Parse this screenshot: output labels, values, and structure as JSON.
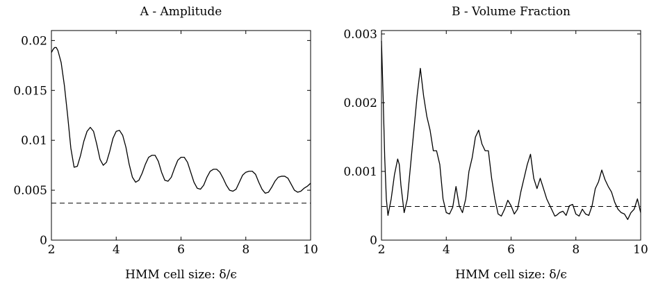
{
  "chart_data": [
    {
      "type": "line",
      "title": "A - Amplitude",
      "xlabel": "HMM cell size: δ/ϵ",
      "ylabel": "",
      "xlim": [
        2,
        10
      ],
      "ylim": [
        0,
        0.021
      ],
      "xticks": [
        2,
        4,
        6,
        8,
        10
      ],
      "xtick_labels": [
        "2",
        "4",
        "6",
        "8",
        "10"
      ],
      "yticks": [
        0,
        0.005,
        0.01,
        0.015,
        0.02
      ],
      "ytick_labels": [
        "0",
        "0.005",
        "0.01",
        "0.015",
        "0.02"
      ],
      "grid": false,
      "series": [
        {
          "style": "solid",
          "x": [
            2.0,
            2.05,
            2.1,
            2.15,
            2.2,
            2.3,
            2.4,
            2.5,
            2.6,
            2.7,
            2.8,
            2.9,
            3.0,
            3.1,
            3.2,
            3.3,
            3.4,
            3.5,
            3.6,
            3.7,
            3.8,
            3.9,
            4.0,
            4.1,
            4.2,
            4.3,
            4.4,
            4.5,
            4.6,
            4.7,
            4.8,
            4.9,
            5.0,
            5.1,
            5.2,
            5.3,
            5.4,
            5.5,
            5.6,
            5.7,
            5.8,
            5.9,
            6.0,
            6.1,
            6.2,
            6.3,
            6.4,
            6.5,
            6.6,
            6.7,
            6.8,
            6.9,
            7.0,
            7.1,
            7.2,
            7.3,
            7.4,
            7.5,
            7.6,
            7.7,
            7.8,
            7.9,
            8.0,
            8.1,
            8.2,
            8.3,
            8.4,
            8.5,
            8.6,
            8.7,
            8.8,
            8.9,
            9.0,
            9.1,
            9.2,
            9.3,
            9.4,
            9.5,
            9.6,
            9.7,
            9.8,
            9.9,
            10.0
          ],
          "y": [
            0.0188,
            0.0191,
            0.0193,
            0.0193,
            0.019,
            0.0178,
            0.0155,
            0.0125,
            0.0092,
            0.0073,
            0.0074,
            0.0085,
            0.0099,
            0.0109,
            0.0113,
            0.0109,
            0.0096,
            0.0081,
            0.0075,
            0.0078,
            0.0089,
            0.0102,
            0.0109,
            0.011,
            0.0105,
            0.0093,
            0.0076,
            0.0063,
            0.0058,
            0.006,
            0.0067,
            0.0076,
            0.0083,
            0.0085,
            0.0085,
            0.0079,
            0.0068,
            0.006,
            0.0059,
            0.0063,
            0.0072,
            0.008,
            0.0083,
            0.0083,
            0.0078,
            0.0068,
            0.0058,
            0.0052,
            0.0051,
            0.0055,
            0.0063,
            0.0069,
            0.0071,
            0.0071,
            0.0068,
            0.0062,
            0.0055,
            0.005,
            0.0049,
            0.0051,
            0.0058,
            0.0065,
            0.0068,
            0.0069,
            0.0069,
            0.0066,
            0.0058,
            0.0051,
            0.0047,
            0.0048,
            0.0053,
            0.0059,
            0.0063,
            0.0064,
            0.0064,
            0.0062,
            0.0056,
            0.005,
            0.0048,
            0.0049,
            0.0052,
            0.0054,
            0.0057
          ]
        },
        {
          "style": "dashed",
          "x": [
            2,
            10
          ],
          "y": [
            0.0037,
            0.0037
          ]
        }
      ]
    },
    {
      "type": "line",
      "title": "B - Volume Fraction",
      "xlabel": "HMM cell size: δ/ϵ",
      "ylabel": "",
      "xlim": [
        2,
        10
      ],
      "ylim": [
        0,
        0.00305
      ],
      "xticks": [
        2,
        4,
        6,
        8,
        10
      ],
      "xtick_labels": [
        "2",
        "4",
        "6",
        "8",
        "10"
      ],
      "yticks": [
        0,
        0.001,
        0.002,
        0.003
      ],
      "ytick_labels": [
        "0",
        "0.001",
        "0.002",
        "0.003"
      ],
      "grid": false,
      "series": [
        {
          "style": "solid",
          "x": [
            2.0,
            2.05,
            2.1,
            2.15,
            2.2,
            2.3,
            2.4,
            2.5,
            2.55,
            2.6,
            2.7,
            2.8,
            2.9,
            3.0,
            3.1,
            3.2,
            3.3,
            3.4,
            3.5,
            3.6,
            3.7,
            3.8,
            3.9,
            4.0,
            4.1,
            4.2,
            4.3,
            4.4,
            4.5,
            4.6,
            4.7,
            4.8,
            4.9,
            5.0,
            5.1,
            5.2,
            5.3,
            5.4,
            5.5,
            5.6,
            5.7,
            5.8,
            5.9,
            6.0,
            6.1,
            6.2,
            6.3,
            6.4,
            6.5,
            6.6,
            6.7,
            6.8,
            6.9,
            7.0,
            7.1,
            7.2,
            7.3,
            7.35,
            7.4,
            7.5,
            7.6,
            7.7,
            7.8,
            7.9,
            8.0,
            8.1,
            8.2,
            8.3,
            8.4,
            8.5,
            8.6,
            8.7,
            8.8,
            8.9,
            9.0,
            9.1,
            9.2,
            9.3,
            9.4,
            9.5,
            9.6,
            9.7,
            9.8,
            9.9,
            10.0
          ],
          "y": [
            0.0029,
            0.0021,
            0.0012,
            0.0006,
            0.00036,
            0.0006,
            0.00095,
            0.00118,
            0.0011,
            0.0008,
            0.0004,
            0.0006,
            0.0011,
            0.0016,
            0.0021,
            0.0025,
            0.0021,
            0.0018,
            0.0016,
            0.0013,
            0.0013,
            0.0011,
            0.0006,
            0.0004,
            0.00038,
            0.00048,
            0.00078,
            0.0005,
            0.0004,
            0.0006,
            0.001,
            0.0012,
            0.0015,
            0.0016,
            0.0014,
            0.0013,
            0.0013,
            0.0009,
            0.0006,
            0.00038,
            0.00035,
            0.00045,
            0.00058,
            0.0005,
            0.00038,
            0.00045,
            0.0007,
            0.0009,
            0.0011,
            0.00125,
            0.0009,
            0.00075,
            0.0009,
            0.00075,
            0.0006,
            0.0005,
            0.0004,
            0.00035,
            0.00036,
            0.0004,
            0.00042,
            0.00036,
            0.0005,
            0.00052,
            0.00038,
            0.00035,
            0.00045,
            0.00038,
            0.00036,
            0.0005,
            0.00075,
            0.00085,
            0.00102,
            0.00088,
            0.00078,
            0.0007,
            0.00055,
            0.00045,
            0.0004,
            0.00038,
            0.0003,
            0.0004,
            0.00045,
            0.0006,
            0.0004
          ]
        },
        {
          "style": "dashed",
          "x": [
            2,
            10
          ],
          "y": [
            0.00049,
            0.00049
          ]
        }
      ]
    }
  ]
}
